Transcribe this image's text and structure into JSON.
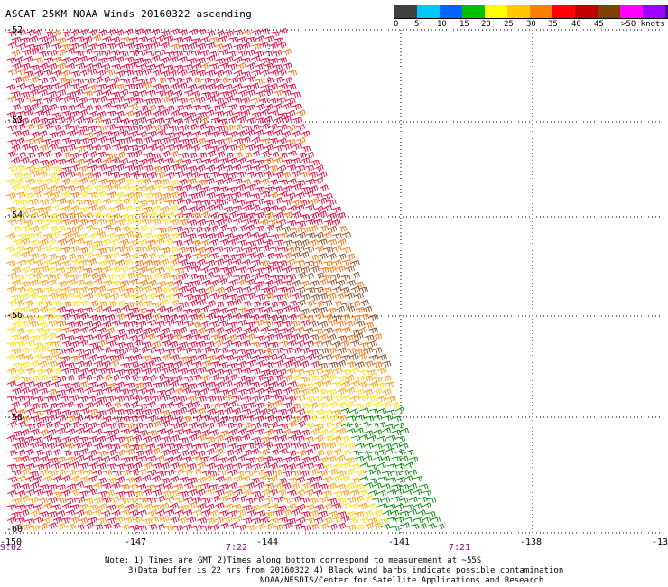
{
  "title": "ASCAT 25KM NOAA Winds 20160322 ascending",
  "legend": {
    "colors": [
      "#404040",
      "#00c8ff",
      "#0064ff",
      "#00c000",
      "#ffff00",
      "#ffc800",
      "#ff8000",
      "#ff0000",
      "#c00000",
      "#804000",
      "#ff00ff",
      "#a000ff",
      "#400080"
    ],
    "ticks": [
      "0",
      "5",
      "10",
      "15",
      "20",
      "25",
      "30",
      "35",
      "40",
      "45",
      ">50 knots"
    ]
  },
  "map": {
    "lat_labels": [
      "-52",
      "-53",
      "-54",
      "-56",
      "-58",
      "-60"
    ],
    "lon_labels": [
      "-150",
      "-147",
      "-144",
      "-141",
      "-138",
      "-13"
    ],
    "time_labels": [
      "9:02",
      "7:22",
      "7:21"
    ],
    "barb_colors": {
      "strong": "#e0003c",
      "medium": "#ff6a00",
      "orange": "#ff9900",
      "yellow": "#ffdd00",
      "brown": "#8b4a26",
      "green": "#008a00"
    }
  },
  "notes": {
    "line1": "Note: 1) Times are GMT 2)Times along bottom correspond to measurement at ~55S",
    "line2": "3)Data buffer is 22 hrs from 20160322 4) Black wind barbs indicate possible contamination",
    "line3": "NOAA/NESDIS/Center for Satellite Applications and Research"
  }
}
